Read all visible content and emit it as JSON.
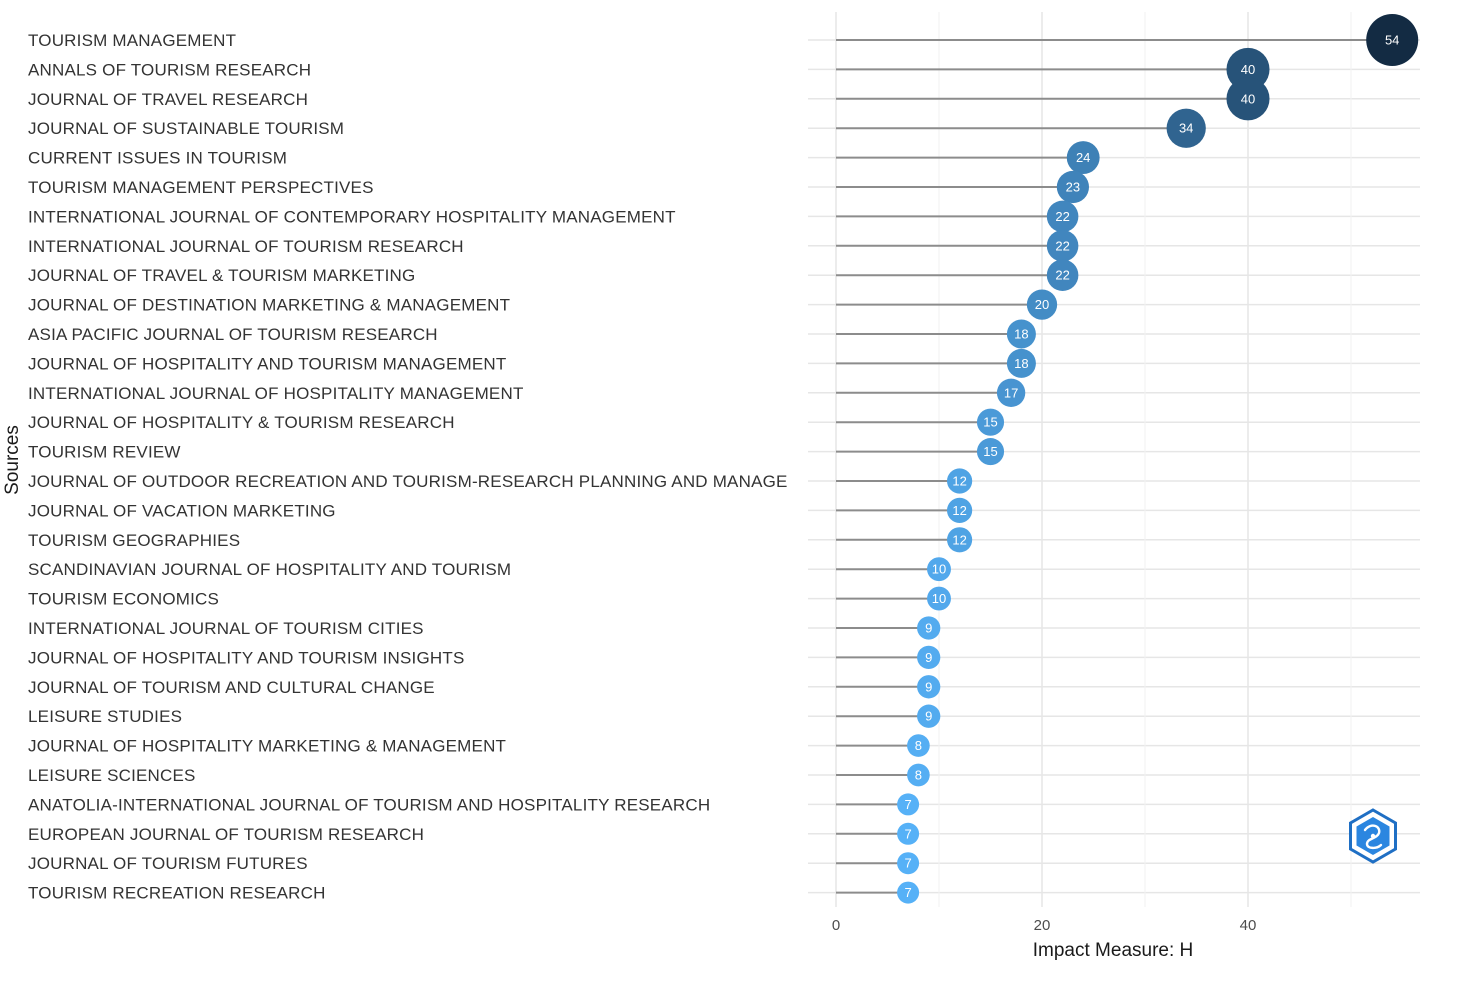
{
  "chart_data": {
    "type": "lollipop",
    "title": "",
    "xlabel": "Impact Measure: H",
    "ylabel": "Sources",
    "xlim": [
      0,
      57
    ],
    "x_ticks": [
      0,
      20,
      40
    ],
    "grid": true,
    "categories": [
      "TOURISM MANAGEMENT",
      "ANNALS OF TOURISM RESEARCH",
      "JOURNAL OF TRAVEL RESEARCH",
      "JOURNAL OF SUSTAINABLE TOURISM",
      "CURRENT ISSUES IN TOURISM",
      "TOURISM MANAGEMENT PERSPECTIVES",
      "INTERNATIONAL JOURNAL OF CONTEMPORARY HOSPITALITY MANAGEMENT",
      "INTERNATIONAL JOURNAL OF TOURISM RESEARCH",
      "JOURNAL OF TRAVEL & TOURISM MARKETING",
      "JOURNAL OF DESTINATION MARKETING & MANAGEMENT",
      "ASIA PACIFIC JOURNAL OF TOURISM RESEARCH",
      "JOURNAL OF HOSPITALITY AND TOURISM MANAGEMENT",
      "INTERNATIONAL JOURNAL OF HOSPITALITY MANAGEMENT",
      "JOURNAL OF HOSPITALITY & TOURISM RESEARCH",
      "TOURISM REVIEW",
      "JOURNAL OF OUTDOOR RECREATION AND TOURISM-RESEARCH PLANNING AND MANAGE",
      "JOURNAL OF VACATION MARKETING",
      "TOURISM GEOGRAPHIES",
      "SCANDINAVIAN JOURNAL OF HOSPITALITY AND TOURISM",
      "TOURISM ECONOMICS",
      "INTERNATIONAL JOURNAL OF TOURISM CITIES",
      "JOURNAL OF HOSPITALITY AND TOURISM INSIGHTS",
      "JOURNAL OF TOURISM AND CULTURAL CHANGE",
      "LEISURE STUDIES",
      "JOURNAL OF HOSPITALITY MARKETING & MANAGEMENT",
      "LEISURE SCIENCES",
      "ANATOLIA-INTERNATIONAL JOURNAL OF TOURISM AND HOSPITALITY RESEARCH",
      "EUROPEAN JOURNAL OF TOURISM RESEARCH",
      "JOURNAL OF TOURISM FUTURES",
      "TOURISM RECREATION RESEARCH"
    ],
    "values": [
      54,
      40,
      40,
      34,
      24,
      23,
      22,
      22,
      22,
      20,
      18,
      18,
      17,
      15,
      15,
      12,
      12,
      12,
      10,
      10,
      9,
      9,
      9,
      9,
      8,
      8,
      7,
      7,
      7,
      7
    ],
    "color_scale": {
      "low": "#56b1f7",
      "high": "#132b43"
    },
    "stem_color": "#8c8c8c",
    "value_label_color": "#ffffff",
    "legend": "none"
  },
  "logo": {
    "name": "bibliometrix-logo-icon"
  }
}
